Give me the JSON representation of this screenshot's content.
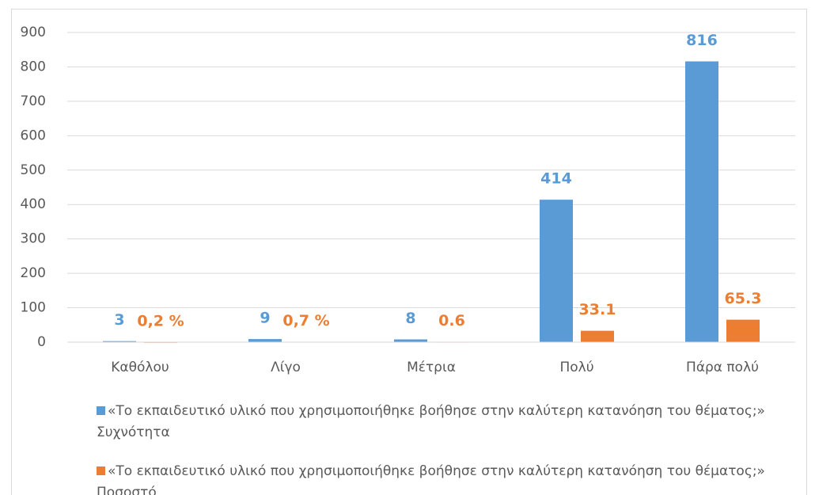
{
  "chart_data": {
    "type": "bar",
    "categories": [
      "Καθόλου",
      "Λίγο",
      "Μέτρια",
      "Πολύ",
      "Πάρα πολύ"
    ],
    "series": [
      {
        "name": "«Το εκπαιδευτικό υλικό που χρησιμοποιήθηκε βοήθησε στην καλύτερη κατανόηση του θέματος;» Συχνότητα",
        "color": "#5b9bd5",
        "values": [
          3,
          9,
          8,
          414,
          816
        ]
      },
      {
        "name": "«Το εκπαιδευτικό υλικό που χρησιμοποιήθηκε βοήθησε στην καλύτερη κατανόηση του θέματος;» Ποσοστό",
        "color": "#ed7d31",
        "values": [
          0.2,
          0.7,
          0.6,
          33.1,
          65.3
        ],
        "value_labels": [
          "0,2 %",
          "0,7 %",
          "0.6",
          "33.1",
          "65.3"
        ]
      }
    ],
    "ylim": [
      0,
      900
    ],
    "yticks": [
      0,
      100,
      200,
      300,
      400,
      500,
      600,
      700,
      800,
      900
    ],
    "grid": true,
    "legend": "bottom"
  }
}
